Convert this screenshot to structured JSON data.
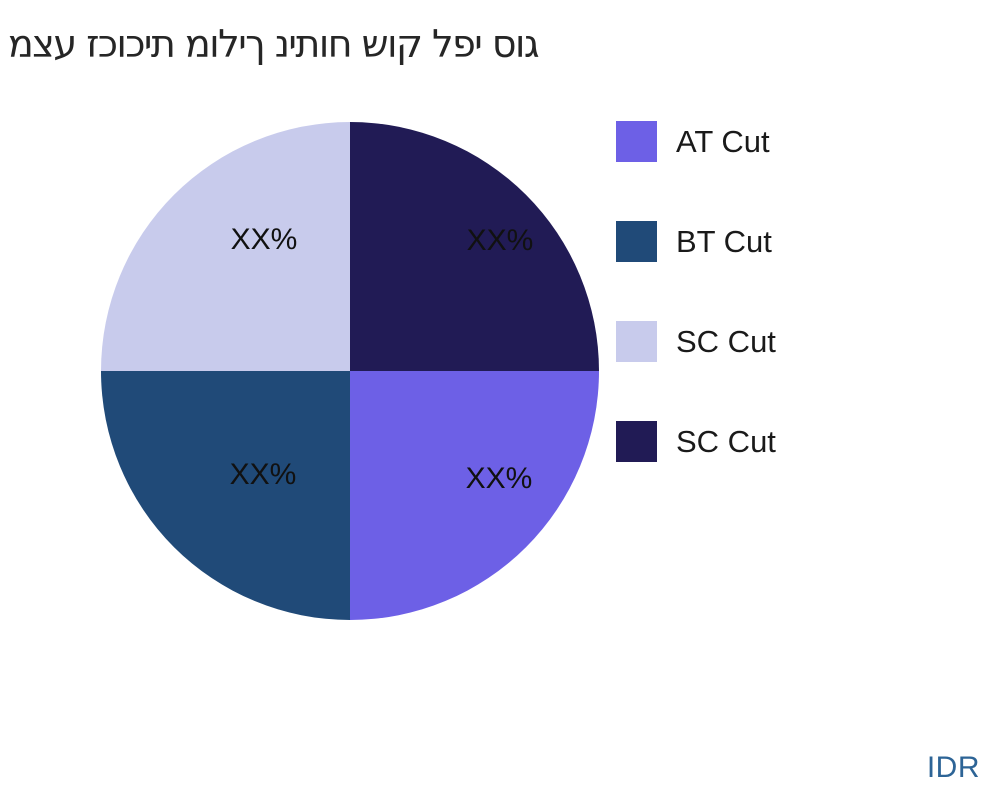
{
  "watermark": "IDR",
  "colors": {
    "background": "#ffffff",
    "title_text": "#262626",
    "slice_label_text": "#111111",
    "legend_text": "#1a1a1a",
    "watermark_text": "#2d6496"
  },
  "chart_data": {
    "type": "pie",
    "title": "מצע זכוכית מוליך ניתוח שוק לפי סוג",
    "legend_position": "right",
    "value_labels_placeholder": true,
    "slices": [
      {
        "label": "AT Cut",
        "value": 25,
        "display_label": "XX%",
        "color": "#6d60e6",
        "position": "bottom-right"
      },
      {
        "label": "BT Cut",
        "value": 25,
        "display_label": "XX%",
        "color": "#204a78",
        "position": "bottom-left"
      },
      {
        "label": "SC Cut",
        "value": 25,
        "display_label": "XX%",
        "color": "#c8cbec",
        "position": "top-left"
      },
      {
        "label": "SC Cut",
        "value": 25,
        "display_label": "XX%",
        "color": "#211b55",
        "position": "top-right"
      }
    ]
  }
}
